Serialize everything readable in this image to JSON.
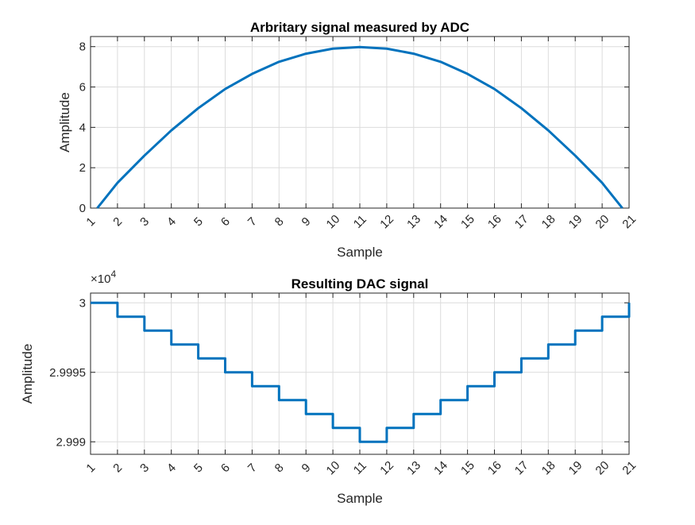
{
  "chart_data": [
    {
      "type": "line",
      "title": "Arbritary signal measured by ADC",
      "xlabel": "Sample",
      "ylabel": "Amplitude",
      "xlim": [
        1,
        21
      ],
      "ylim": [
        0,
        8.5
      ],
      "xticks": [
        1,
        2,
        3,
        4,
        5,
        6,
        7,
        8,
        9,
        10,
        11,
        12,
        13,
        14,
        15,
        16,
        17,
        18,
        19,
        20,
        21
      ],
      "yticks": [
        0,
        2,
        4,
        6,
        8
      ],
      "ytick_labels": [
        "0",
        "2",
        "4",
        "6",
        "8"
      ],
      "grid": true,
      "series": [
        {
          "color": "#0072bd",
          "x": [
            1.25,
            2,
            3,
            4,
            5,
            6,
            7,
            8,
            9,
            10,
            11,
            12,
            13,
            14,
            15,
            16,
            17,
            18,
            19,
            20,
            20.75
          ],
          "y": [
            0,
            1.25,
            2.6,
            3.85,
            4.95,
            5.9,
            6.65,
            7.25,
            7.65,
            7.9,
            7.98,
            7.9,
            7.65,
            7.25,
            6.65,
            5.9,
            4.95,
            3.85,
            2.6,
            1.25,
            0
          ]
        }
      ]
    },
    {
      "type": "line",
      "step": true,
      "title": "Resulting DAC signal",
      "xlabel": "Sample",
      "ylabel": "Amplitude",
      "exponent_label": "10",
      "exponent_power": "4",
      "xlim": [
        1,
        21
      ],
      "ylim": [
        29989.1,
        30000.7
      ],
      "xticks": [
        1,
        2,
        3,
        4,
        5,
        6,
        7,
        8,
        9,
        10,
        11,
        12,
        13,
        14,
        15,
        16,
        17,
        18,
        19,
        20,
        21
      ],
      "yticks": [
        29990,
        29995,
        30000
      ],
      "ytick_labels": [
        "2.999",
        "2.9995",
        "3"
      ],
      "grid": true,
      "series": [
        {
          "color": "#0072bd",
          "x": [
            1,
            2,
            3,
            4,
            5,
            6,
            7,
            8,
            9,
            10,
            11,
            12,
            13,
            14,
            15,
            16,
            17,
            18,
            19,
            20,
            21
          ],
          "y": [
            30000,
            29999,
            29998,
            29997,
            29996,
            29995,
            29994,
            29993,
            29992,
            29991,
            29990,
            29991,
            29992,
            29993,
            29994,
            29995,
            29996,
            29997,
            29998,
            29999,
            30000
          ]
        }
      ]
    }
  ]
}
